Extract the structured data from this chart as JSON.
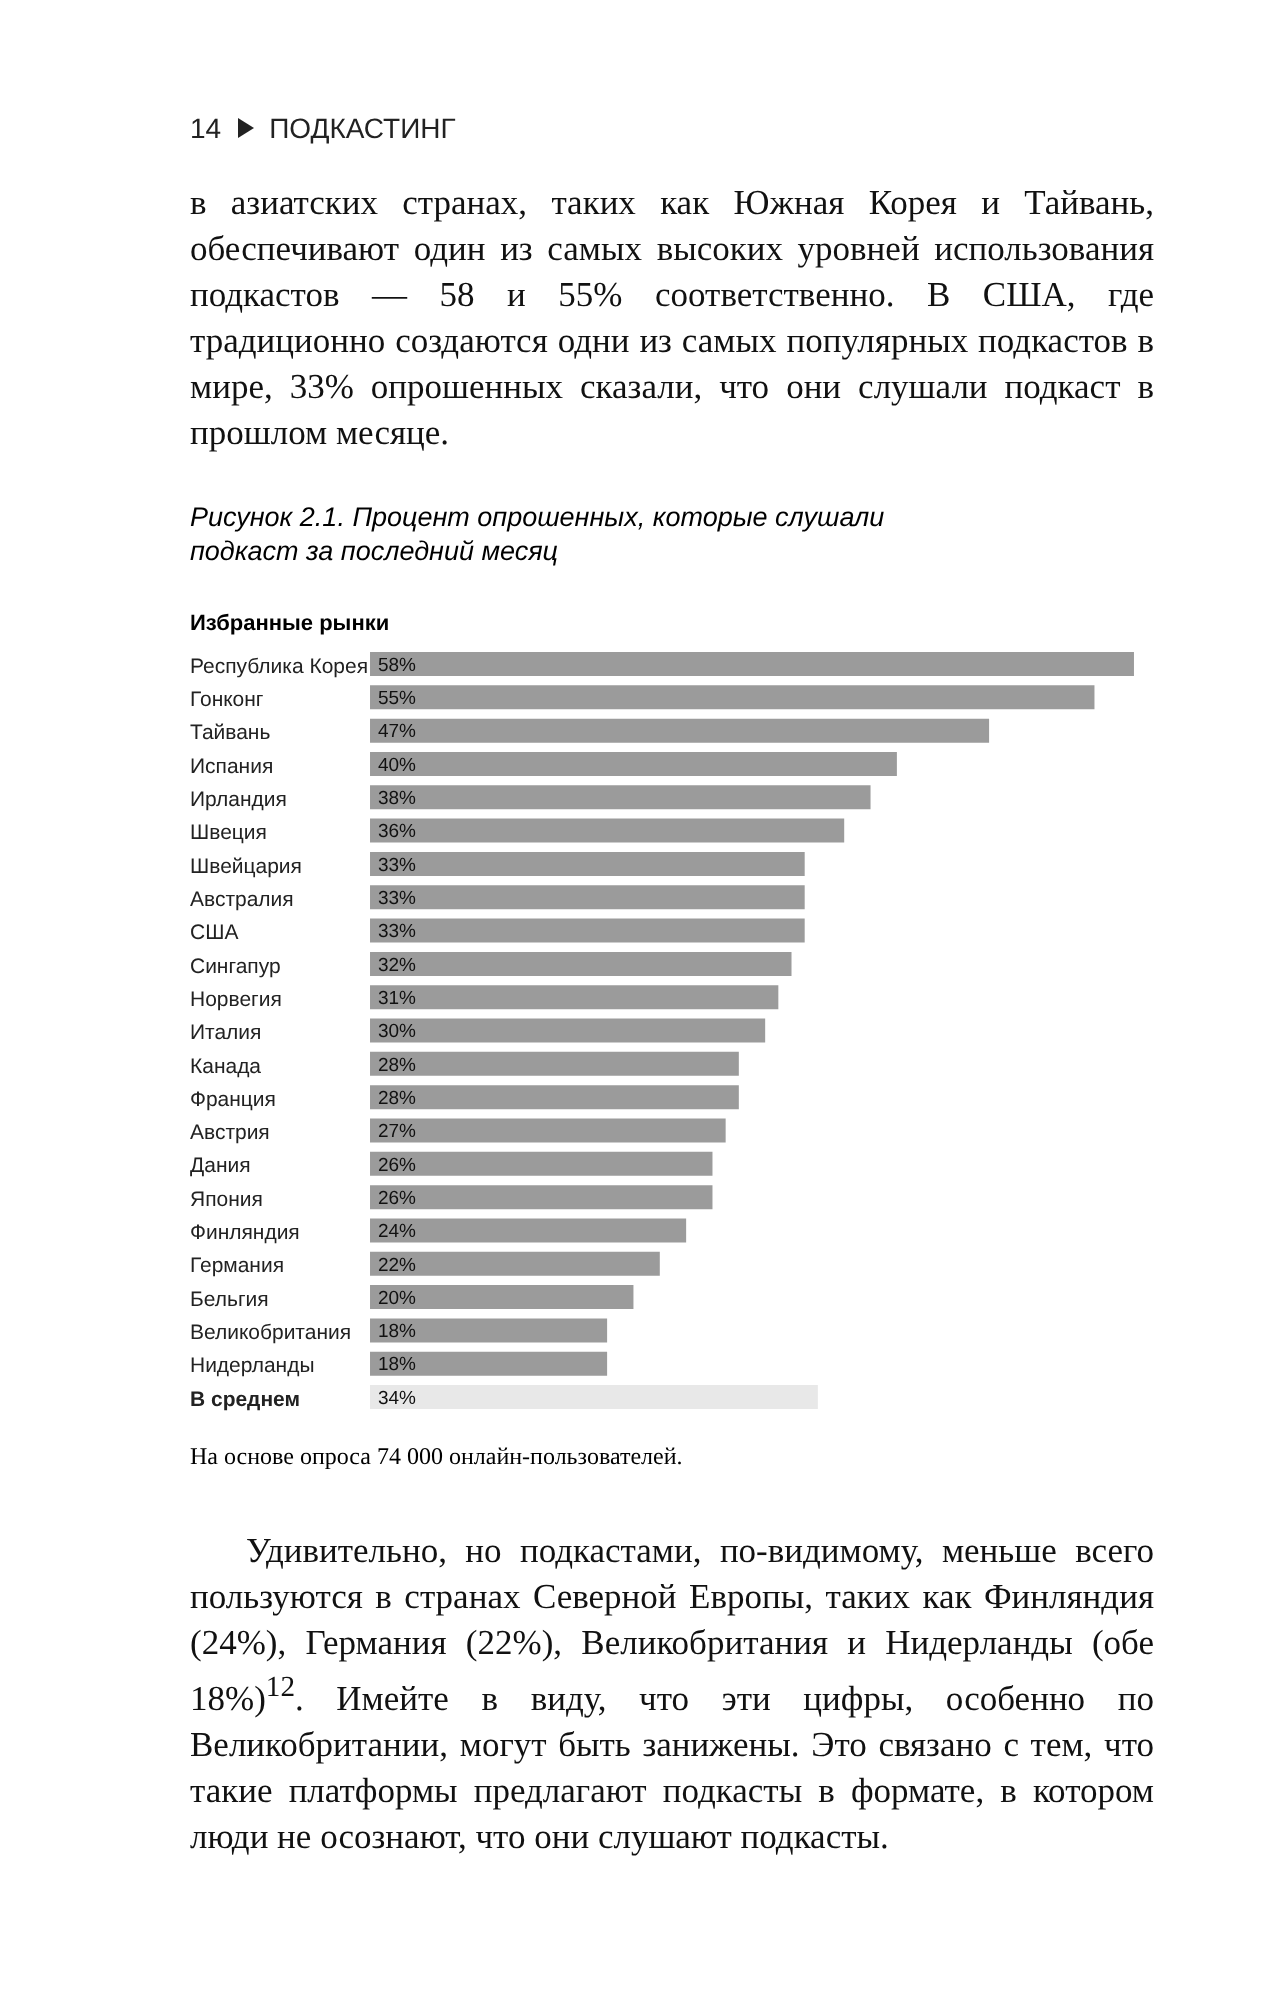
{
  "chart_data": {
    "type": "bar",
    "orientation": "horizontal",
    "title": "Рисунок 2.1. Процент опрошенных, которые слушали подкаст за последний месяц",
    "subtitle": "Избранные рынки",
    "categories": [
      "Республика Корея",
      "Гонконг",
      "Тайвань",
      "Испания",
      "Ирландия",
      "Швеция",
      "Швейцария",
      "Австралия",
      "США",
      "Сингапур",
      "Норвегия",
      "Италия",
      "Канада",
      "Франция",
      "Австрия",
      "Дания",
      "Япония",
      "Финляндия",
      "Германия",
      "Бельгия",
      "Великобритания",
      "Нидерланды",
      "В среднем"
    ],
    "values": [
      58,
      55,
      47,
      40,
      38,
      36,
      33,
      33,
      33,
      32,
      31,
      30,
      28,
      28,
      27,
      26,
      26,
      24,
      22,
      20,
      18,
      18,
      34
    ],
    "value_labels": [
      "58%",
      "55%",
      "47%",
      "40%",
      "38%",
      "36%",
      "33%",
      "33%",
      "33%",
      "32%",
      "31%",
      "30%",
      "28%",
      "28%",
      "27%",
      "26%",
      "26%",
      "24%",
      "22%",
      "20%",
      "18%",
      "18%",
      "34%"
    ],
    "colors": [
      "#9b9b9b",
      "#9b9b9b",
      "#9b9b9b",
      "#9b9b9b",
      "#9b9b9b",
      "#9b9b9b",
      "#9b9b9b",
      "#9b9b9b",
      "#9b9b9b",
      "#9b9b9b",
      "#9b9b9b",
      "#9b9b9b",
      "#9b9b9b",
      "#9b9b9b",
      "#9b9b9b",
      "#9b9b9b",
      "#9b9b9b",
      "#9b9b9b",
      "#9b9b9b",
      "#9b9b9b",
      "#9b9b9b",
      "#9b9b9b",
      "#e8e8e8"
    ],
    "annotations": [
      "14",
      "ПОДКАСТИНГ",
      "в азиатских странах, таких как Южная Корея и Тайвань, обеспечивают один из самых высоких уровней использования подкастов — 58 и 55% соответственно. В США, где традиционно создаются одни из самых популярных подкастов в мире, 33% опрошенных сказали, что они слушали подкаст в прошлом месяце.",
      "На основе опроса 74 000 онлайн-пользователей.",
      "Удивительно, но подкастами, по-видимому, меньше всего пользуются в странах Северной Европы, таких как Финляндия (24%), Германия (22%), Великобритания и Нидерланды (обе 18%)$^{12}$. Имейте в виду, что эти цифры, особенно по Великобритании, могут быть занижены. Это связано с тем, что такие платформы предлагают подкасты в формате, в котором люди не осознают, что они слушают подкасты."
    ]
  }
}
